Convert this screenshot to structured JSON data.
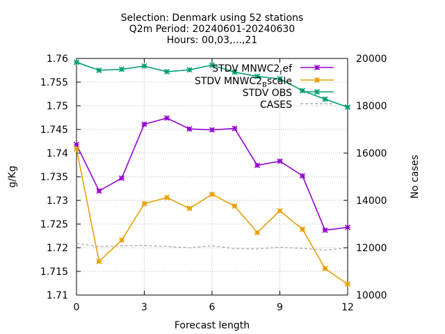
{
  "chart_data": {
    "type": "line",
    "title_lines": [
      "Selection: Denmark using    52 stations",
      "Q2m   Period: 20240601-20240630",
      "Hours: 00,03,...,21"
    ],
    "xlabel": "Forecast length",
    "ylabel": "g/Kg",
    "y2label": "No cases",
    "xlim": [
      0,
      12
    ],
    "ylim": [
      1.71,
      1.76
    ],
    "y2lim": [
      10000,
      20000
    ],
    "xticks": [
      "0",
      "3",
      "6",
      "9",
      "12"
    ],
    "yticks": [
      "1.71",
      "1.715",
      "1.72",
      "1.725",
      "1.73",
      "1.735",
      "1.74",
      "1.745",
      "1.75",
      "1.755",
      "1.76"
    ],
    "y2ticks": [
      "10000",
      "12000",
      "14000",
      "16000",
      "18000",
      "20000"
    ],
    "grid": true,
    "legend_position": "top-right",
    "x": [
      0,
      1,
      2,
      3,
      4,
      5,
      6,
      7,
      8,
      9,
      10,
      11,
      12
    ],
    "series": [
      {
        "name": "STDV MNWC2_ref",
        "legend_main": "STDV MNWC2",
        "legend_sub": "r",
        "legend_tail": "ef",
        "axis": "y1",
        "color": "#9400d3",
        "dashed": false,
        "marker": "star",
        "values": [
          1.7418,
          1.732,
          1.7347,
          1.7461,
          1.7474,
          1.7451,
          1.7449,
          1.7452,
          1.7374,
          1.7383,
          1.7352,
          1.7237,
          1.7243
        ]
      },
      {
        "name": "STDV MNWC2_Bscale",
        "legend_main": "STDV MNWC2",
        "legend_sub": "B",
        "legend_tail": "scale",
        "axis": "y1",
        "color": "#e69f00",
        "dashed": false,
        "marker": "star",
        "values": [
          1.7409,
          1.7171,
          1.7216,
          1.7293,
          1.7306,
          1.7283,
          1.7313,
          1.7288,
          1.7232,
          1.7278,
          1.7239,
          1.7156,
          1.7123
        ]
      },
      {
        "name": "STDV OBS",
        "legend_main": "STDV OBS",
        "legend_sub": "",
        "legend_tail": "",
        "axis": "y1",
        "color": "#009e73",
        "dashed": false,
        "marker": "star",
        "values": [
          1.7592,
          1.7575,
          1.7577,
          1.7584,
          1.7572,
          1.7576,
          1.7586,
          1.7571,
          1.7562,
          1.7557,
          1.7532,
          1.7514,
          1.7497
        ]
      },
      {
        "name": "CASES",
        "legend_main": "CASES",
        "legend_sub": "",
        "legend_tail": "",
        "axis": "y2",
        "color": "#a0a0a0",
        "dashed": true,
        "marker": "none",
        "values": [
          12180,
          12050,
          12080,
          12100,
          12050,
          12000,
          12080,
          11960,
          11950,
          12020,
          11970,
          11900,
          11990
        ]
      }
    ]
  }
}
